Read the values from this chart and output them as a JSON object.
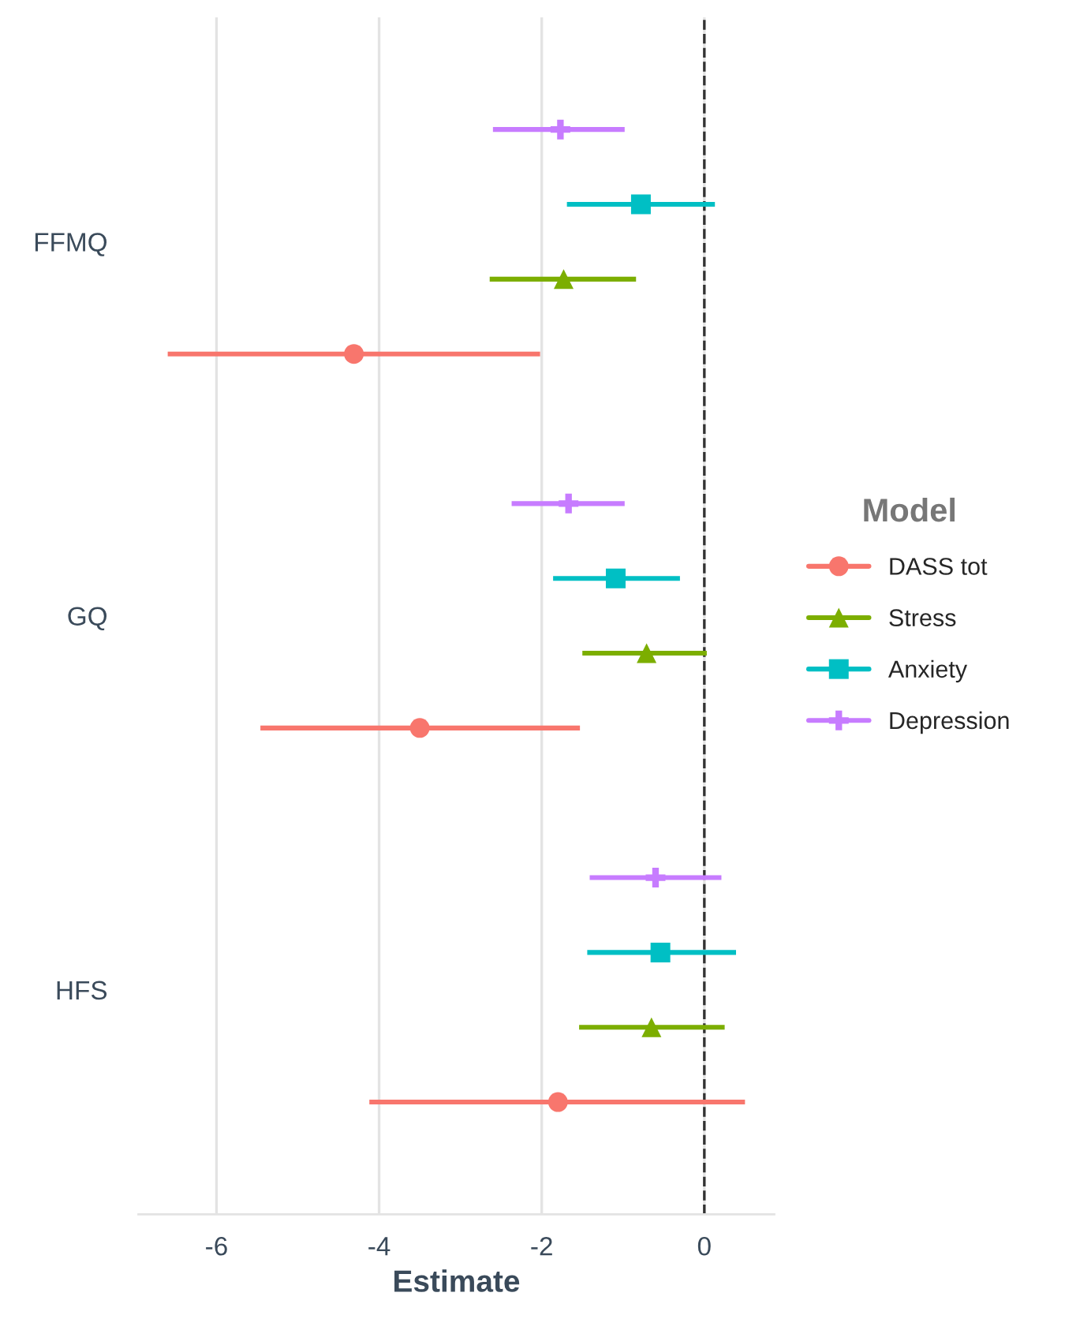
{
  "chart_data": {
    "type": "scatter",
    "orientation": "horizontal",
    "xlabel": "Estimate",
    "legend_title": "Model",
    "categories": [
      "FFMQ",
      "GQ",
      "HFS"
    ],
    "series": [
      {
        "name": "DASS tot",
        "color": "#f8766d",
        "marker": "circle",
        "values": [
          -4.31,
          -3.5,
          -1.8
        ],
        "errors": [
          [
            -6.6,
            -2.02
          ],
          [
            -5.46,
            -1.53
          ],
          [
            -4.12,
            0.5
          ]
        ]
      },
      {
        "name": "Stress",
        "color": "#7cae00",
        "marker": "triangle",
        "values": [
          -1.73,
          -0.71,
          -0.65
        ],
        "errors": [
          [
            -2.64,
            -0.84
          ],
          [
            -1.5,
            0.03
          ],
          [
            -1.54,
            0.25
          ]
        ]
      },
      {
        "name": "Anxiety",
        "color": "#00bfc4",
        "marker": "square",
        "values": [
          -0.78,
          -1.09,
          -0.54
        ],
        "errors": [
          [
            -1.69,
            0.13
          ],
          [
            -1.86,
            -0.3
          ],
          [
            -1.44,
            0.39
          ]
        ]
      },
      {
        "name": "Depression",
        "color": "#c77cff",
        "marker": "cross",
        "values": [
          -1.77,
          -1.67,
          -0.6
        ],
        "errors": [
          [
            -2.6,
            -0.98
          ],
          [
            -2.37,
            -0.98
          ],
          [
            -1.41,
            0.21
          ]
        ]
      }
    ],
    "xlim": [
      -6.96,
      0.86
    ],
    "xticks": [
      -6,
      -4,
      -2,
      0
    ],
    "ref_lines": [
      {
        "axis": "x",
        "value": 0,
        "color": "#333333",
        "line_style": "dashed"
      }
    ],
    "grid": "x",
    "legend": "right"
  }
}
